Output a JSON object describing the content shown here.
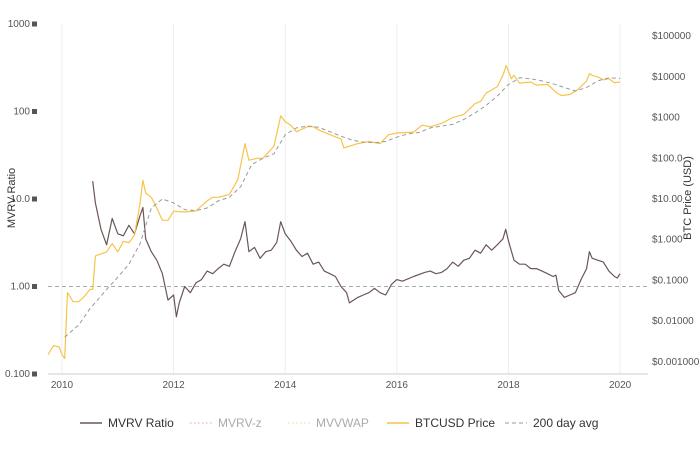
{
  "chart_data": {
    "type": "line",
    "title": "",
    "xlabel": "",
    "ylabel_left": "MVRV Ratio",
    "ylabel_right": "BTC Price (USD)",
    "x_ticks": [
      "2010",
      "2012",
      "2014",
      "2016",
      "2018",
      "2020"
    ],
    "x_range": [
      2009.75,
      2020.5
    ],
    "y_left_scale": "log",
    "y_left_range": [
      0.1,
      1000
    ],
    "y_left_ticks": [
      "0.100",
      "1.00",
      "10.0",
      "100",
      "1000"
    ],
    "y_right_scale": "log",
    "y_right_range": [
      0.0005,
      200000
    ],
    "y_right_ticks": [
      "$0.001000",
      "$0.01000",
      "$0.1000",
      "$1.000",
      "$10.00",
      "$100.0",
      "$1000",
      "$10000",
      "$100000"
    ],
    "reference_line": {
      "axis": "left",
      "value": 1.0
    },
    "grid": "vertical",
    "legend_position": "bottom",
    "colors": {
      "mvrv": "#6b5656",
      "price": "#f7c44a",
      "avg200": "#999999",
      "mvrvz": "#e5a3a3",
      "mvvwap": "#f2d3a8",
      "reference": "#aaaaaa",
      "grid": "#eeeeee"
    },
    "series": [
      {
        "name": "MVRV Ratio",
        "axis": "left",
        "points": [
          [
            2010.55,
            16
          ],
          [
            2010.6,
            9
          ],
          [
            2010.7,
            4.5
          ],
          [
            2010.8,
            3
          ],
          [
            2010.9,
            6
          ],
          [
            2011.0,
            4
          ],
          [
            2011.1,
            3.8
          ],
          [
            2011.2,
            5
          ],
          [
            2011.3,
            4
          ],
          [
            2011.4,
            6.5
          ],
          [
            2011.45,
            8
          ],
          [
            2011.5,
            3.5
          ],
          [
            2011.6,
            2.5
          ],
          [
            2011.7,
            2
          ],
          [
            2011.8,
            1.4
          ],
          [
            2011.9,
            0.7
          ],
          [
            2012.0,
            0.8
          ],
          [
            2012.05,
            0.45
          ],
          [
            2012.1,
            0.65
          ],
          [
            2012.2,
            1.0
          ],
          [
            2012.3,
            0.85
          ],
          [
            2012.4,
            1.1
          ],
          [
            2012.5,
            1.2
          ],
          [
            2012.6,
            1.5
          ],
          [
            2012.7,
            1.4
          ],
          [
            2012.8,
            1.6
          ],
          [
            2012.9,
            1.8
          ],
          [
            2013.0,
            1.7
          ],
          [
            2013.1,
            2.5
          ],
          [
            2013.2,
            3.5
          ],
          [
            2013.28,
            5.5
          ],
          [
            2013.35,
            2.5
          ],
          [
            2013.45,
            2.8
          ],
          [
            2013.55,
            2.1
          ],
          [
            2013.65,
            2.5
          ],
          [
            2013.75,
            2.6
          ],
          [
            2013.85,
            3.2
          ],
          [
            2013.92,
            5.5
          ],
          [
            2014.0,
            4
          ],
          [
            2014.1,
            3.3
          ],
          [
            2014.2,
            2.6
          ],
          [
            2014.3,
            2.2
          ],
          [
            2014.4,
            2.4
          ],
          [
            2014.5,
            1.8
          ],
          [
            2014.6,
            1.9
          ],
          [
            2014.7,
            1.5
          ],
          [
            2014.8,
            1.4
          ],
          [
            2014.9,
            1.3
          ],
          [
            2015.0,
            1.0
          ],
          [
            2015.1,
            0.85
          ],
          [
            2015.15,
            0.65
          ],
          [
            2015.3,
            0.75
          ],
          [
            2015.4,
            0.8
          ],
          [
            2015.5,
            0.85
          ],
          [
            2015.6,
            0.95
          ],
          [
            2015.7,
            0.85
          ],
          [
            2015.8,
            0.8
          ],
          [
            2015.9,
            1.05
          ],
          [
            2016.0,
            1.2
          ],
          [
            2016.1,
            1.15
          ],
          [
            2016.3,
            1.3
          ],
          [
            2016.5,
            1.45
          ],
          [
            2016.6,
            1.5
          ],
          [
            2016.7,
            1.4
          ],
          [
            2016.8,
            1.45
          ],
          [
            2016.9,
            1.6
          ],
          [
            2017.0,
            1.9
          ],
          [
            2017.1,
            1.7
          ],
          [
            2017.2,
            2.0
          ],
          [
            2017.3,
            2.1
          ],
          [
            2017.4,
            2.6
          ],
          [
            2017.5,
            2.4
          ],
          [
            2017.6,
            3.0
          ],
          [
            2017.7,
            2.6
          ],
          [
            2017.8,
            3.0
          ],
          [
            2017.9,
            3.5
          ],
          [
            2017.95,
            4.5
          ],
          [
            2018.0,
            3.3
          ],
          [
            2018.1,
            2.0
          ],
          [
            2018.2,
            1.8
          ],
          [
            2018.3,
            1.8
          ],
          [
            2018.4,
            1.6
          ],
          [
            2018.5,
            1.6
          ],
          [
            2018.6,
            1.5
          ],
          [
            2018.7,
            1.4
          ],
          [
            2018.8,
            1.3
          ],
          [
            2018.85,
            1.35
          ],
          [
            2018.9,
            0.9
          ],
          [
            2019.0,
            0.75
          ],
          [
            2019.1,
            0.8
          ],
          [
            2019.2,
            0.85
          ],
          [
            2019.3,
            1.2
          ],
          [
            2019.4,
            1.6
          ],
          [
            2019.45,
            2.5
          ],
          [
            2019.5,
            2.1
          ],
          [
            2019.6,
            2.0
          ],
          [
            2019.7,
            1.9
          ],
          [
            2019.8,
            1.5
          ],
          [
            2019.9,
            1.3
          ],
          [
            2019.95,
            1.25
          ],
          [
            2020.0,
            1.4
          ]
        ]
      },
      {
        "name": "BTCUSD Price",
        "axis": "right",
        "points": [
          [
            2009.75,
            0.0015
          ],
          [
            2009.85,
            0.0025
          ],
          [
            2009.95,
            0.0023
          ],
          [
            2010.0,
            0.0015
          ],
          [
            2010.05,
            0.0012
          ],
          [
            2010.1,
            0.05
          ],
          [
            2010.2,
            0.03
          ],
          [
            2010.3,
            0.03
          ],
          [
            2010.4,
            0.04
          ],
          [
            2010.5,
            0.06
          ],
          [
            2010.55,
            0.06
          ],
          [
            2010.6,
            0.4
          ],
          [
            2010.8,
            0.5
          ],
          [
            2010.9,
            0.8
          ],
          [
            2011.0,
            0.5
          ],
          [
            2011.1,
            0.9
          ],
          [
            2011.2,
            0.85
          ],
          [
            2011.3,
            1.3
          ],
          [
            2011.4,
            8
          ],
          [
            2011.45,
            29
          ],
          [
            2011.5,
            14
          ],
          [
            2011.6,
            11
          ],
          [
            2011.7,
            6
          ],
          [
            2011.8,
            3
          ],
          [
            2011.9,
            3
          ],
          [
            2012.0,
            5
          ],
          [
            2012.2,
            4.8
          ],
          [
            2012.4,
            5.1
          ],
          [
            2012.6,
            9
          ],
          [
            2012.7,
            11
          ],
          [
            2012.8,
            11
          ],
          [
            2013.0,
            13
          ],
          [
            2013.15,
            30
          ],
          [
            2013.28,
            230
          ],
          [
            2013.35,
            90
          ],
          [
            2013.5,
            100
          ],
          [
            2013.6,
            100
          ],
          [
            2013.8,
            200
          ],
          [
            2013.92,
            1100
          ],
          [
            2014.0,
            800
          ],
          [
            2014.1,
            650
          ],
          [
            2014.2,
            450
          ],
          [
            2014.4,
            600
          ],
          [
            2014.5,
            600
          ],
          [
            2014.6,
            500
          ],
          [
            2014.8,
            380
          ],
          [
            2015.0,
            300
          ],
          [
            2015.05,
            180
          ],
          [
            2015.3,
            230
          ],
          [
            2015.5,
            260
          ],
          [
            2015.7,
            230
          ],
          [
            2015.85,
            380
          ],
          [
            2016.0,
            420
          ],
          [
            2016.3,
            440
          ],
          [
            2016.45,
            650
          ],
          [
            2016.6,
            600
          ],
          [
            2016.8,
            720
          ],
          [
            2017.0,
            1000
          ],
          [
            2017.2,
            1200
          ],
          [
            2017.4,
            2200
          ],
          [
            2017.5,
            2500
          ],
          [
            2017.6,
            4000
          ],
          [
            2017.8,
            5800
          ],
          [
            2017.9,
            11000
          ],
          [
            2017.96,
            19000
          ],
          [
            2018.05,
            9000
          ],
          [
            2018.1,
            11000
          ],
          [
            2018.2,
            7000
          ],
          [
            2018.4,
            7500
          ],
          [
            2018.5,
            6300
          ],
          [
            2018.7,
            6500
          ],
          [
            2018.87,
            4000
          ],
          [
            2018.95,
            3500
          ],
          [
            2019.1,
            3700
          ],
          [
            2019.25,
            5000
          ],
          [
            2019.4,
            8000
          ],
          [
            2019.45,
            12000
          ],
          [
            2019.5,
            11000
          ],
          [
            2019.6,
            10000
          ],
          [
            2019.7,
            8500
          ],
          [
            2019.8,
            9000
          ],
          [
            2019.9,
            7200
          ],
          [
            2020.0,
            7500
          ]
        ]
      },
      {
        "name": "200 day avg",
        "axis": "right",
        "dashed": true,
        "points": [
          [
            2010.05,
            0.004
          ],
          [
            2010.3,
            0.008
          ],
          [
            2010.5,
            0.02
          ],
          [
            2010.8,
            0.06
          ],
          [
            2011.0,
            0.12
          ],
          [
            2011.2,
            0.25
          ],
          [
            2011.4,
            0.8
          ],
          [
            2011.6,
            6
          ],
          [
            2011.8,
            10
          ],
          [
            2012.0,
            8
          ],
          [
            2012.2,
            5.5
          ],
          [
            2012.4,
            5.2
          ],
          [
            2012.6,
            6
          ],
          [
            2012.8,
            9
          ],
          [
            2013.0,
            11
          ],
          [
            2013.2,
            20
          ],
          [
            2013.4,
            70
          ],
          [
            2013.6,
            100
          ],
          [
            2013.8,
            130
          ],
          [
            2014.0,
            380
          ],
          [
            2014.2,
            560
          ],
          [
            2014.4,
            620
          ],
          [
            2014.6,
            580
          ],
          [
            2014.8,
            450
          ],
          [
            2015.0,
            350
          ],
          [
            2015.2,
            280
          ],
          [
            2015.4,
            250
          ],
          [
            2015.6,
            240
          ],
          [
            2015.8,
            260
          ],
          [
            2016.0,
            330
          ],
          [
            2016.2,
            400
          ],
          [
            2016.4,
            430
          ],
          [
            2016.6,
            560
          ],
          [
            2016.8,
            620
          ],
          [
            2017.0,
            680
          ],
          [
            2017.2,
            900
          ],
          [
            2017.4,
            1300
          ],
          [
            2017.6,
            2000
          ],
          [
            2017.8,
            3400
          ],
          [
            2018.0,
            6500
          ],
          [
            2018.2,
            9500
          ],
          [
            2018.4,
            9000
          ],
          [
            2018.6,
            8000
          ],
          [
            2018.8,
            6800
          ],
          [
            2019.0,
            5500
          ],
          [
            2019.2,
            4500
          ],
          [
            2019.4,
            5500
          ],
          [
            2019.6,
            8000
          ],
          [
            2019.8,
            9500
          ],
          [
            2020.0,
            9200
          ]
        ]
      }
    ],
    "legend": [
      {
        "label": "MVRV Ratio",
        "style": "solid",
        "colorKey": "mvrv"
      },
      {
        "label": "MVRV-z",
        "style": "dotted",
        "colorKey": "mvrvz",
        "muted": true
      },
      {
        "label": "MVVWAP",
        "style": "dotted",
        "colorKey": "mvvwap",
        "muted": true
      },
      {
        "label": "BTCUSD Price",
        "style": "solid",
        "colorKey": "price"
      },
      {
        "label": "200 day avg",
        "style": "dashed",
        "colorKey": "avg200"
      }
    ]
  }
}
